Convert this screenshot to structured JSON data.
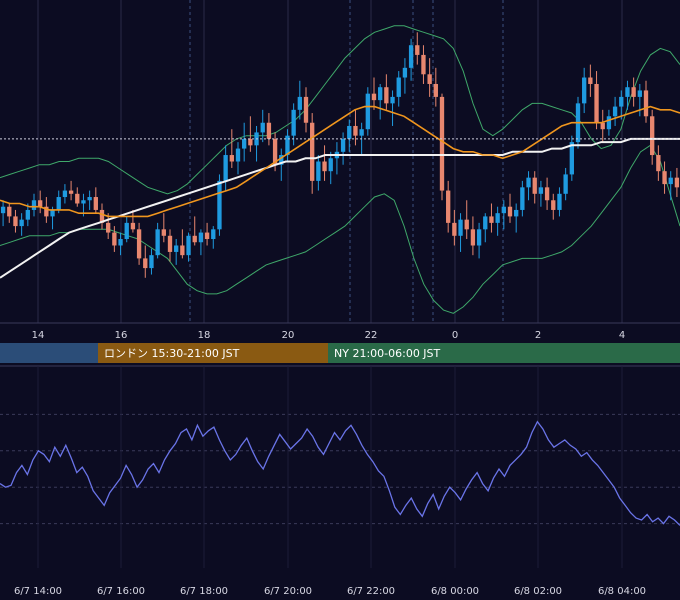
{
  "chart_data": [
    {
      "type": "candlestick",
      "title": "",
      "price_panel": {
        "ylim": [
          0,
          100
        ],
        "reference_line_y": 57,
        "x_ticks": [
          "14",
          "16",
          "18",
          "20",
          "22",
          "0",
          "2",
          "4"
        ],
        "candles_ohlc": [
          [
            34,
            38,
            30,
            36
          ],
          [
            36,
            37,
            31,
            33
          ],
          [
            33,
            35,
            28,
            30
          ],
          [
            30,
            34,
            27,
            32
          ],
          [
            32,
            37,
            30,
            35
          ],
          [
            35,
            40,
            33,
            38
          ],
          [
            38,
            41,
            34,
            36
          ],
          [
            36,
            39,
            31,
            33
          ],
          [
            33,
            36,
            29,
            35
          ],
          [
            35,
            41,
            34,
            39
          ],
          [
            39,
            43,
            37,
            41
          ],
          [
            41,
            44,
            38,
            40
          ],
          [
            40,
            42,
            36,
            37
          ],
          [
            37,
            40,
            33,
            38
          ],
          [
            38,
            41,
            35,
            39
          ],
          [
            39,
            42,
            34,
            35
          ],
          [
            35,
            37,
            29,
            31
          ],
          [
            31,
            34,
            26,
            28
          ],
          [
            28,
            30,
            22,
            24
          ],
          [
            24,
            28,
            21,
            26
          ],
          [
            26,
            33,
            25,
            31
          ],
          [
            31,
            35,
            28,
            29
          ],
          [
            29,
            31,
            18,
            20
          ],
          [
            20,
            24,
            14,
            17
          ],
          [
            17,
            23,
            15,
            21
          ],
          [
            21,
            31,
            20,
            29
          ],
          [
            29,
            34,
            25,
            27
          ],
          [
            27,
            29,
            19,
            22
          ],
          [
            22,
            26,
            18,
            24
          ],
          [
            24,
            29,
            20,
            21
          ],
          [
            21,
            28,
            19,
            27
          ],
          [
            27,
            33,
            24,
            25
          ],
          [
            25,
            29,
            21,
            28
          ],
          [
            28,
            31,
            24,
            26
          ],
          [
            26,
            30,
            23,
            29
          ],
          [
            29,
            46,
            27,
            44
          ],
          [
            44,
            55,
            41,
            52
          ],
          [
            52,
            60,
            48,
            50
          ],
          [
            50,
            56,
            46,
            54
          ],
          [
            54,
            62,
            50,
            57
          ],
          [
            57,
            64,
            53,
            55
          ],
          [
            55,
            61,
            50,
            59
          ],
          [
            59,
            66,
            56,
            62
          ],
          [
            62,
            65,
            55,
            57
          ],
          [
            57,
            59,
            47,
            49
          ],
          [
            49,
            54,
            44,
            52
          ],
          [
            52,
            60,
            50,
            58
          ],
          [
            58,
            68,
            55,
            66
          ],
          [
            66,
            75,
            63,
            70
          ],
          [
            70,
            73,
            59,
            62
          ],
          [
            62,
            65,
            40,
            44
          ],
          [
            44,
            52,
            41,
            50
          ],
          [
            50,
            55,
            44,
            47
          ],
          [
            47,
            53,
            43,
            51
          ],
          [
            51,
            56,
            46,
            53
          ],
          [
            53,
            59,
            49,
            57
          ],
          [
            57,
            63,
            53,
            61
          ],
          [
            61,
            66,
            55,
            58
          ],
          [
            58,
            62,
            52,
            60
          ],
          [
            60,
            73,
            58,
            71
          ],
          [
            71,
            76,
            66,
            69
          ],
          [
            69,
            74,
            63,
            73
          ],
          [
            73,
            77,
            66,
            68
          ],
          [
            68,
            72,
            61,
            70
          ],
          [
            70,
            78,
            67,
            76
          ],
          [
            76,
            82,
            71,
            79
          ],
          [
            79,
            88,
            75,
            86
          ],
          [
            86,
            90,
            80,
            83
          ],
          [
            83,
            86,
            74,
            77
          ],
          [
            77,
            82,
            70,
            74
          ],
          [
            74,
            79,
            67,
            70
          ],
          [
            70,
            71,
            38,
            41
          ],
          [
            41,
            44,
            28,
            31
          ],
          [
            31,
            35,
            24,
            27
          ],
          [
            27,
            34,
            22,
            32
          ],
          [
            32,
            38,
            26,
            29
          ],
          [
            29,
            33,
            21,
            24
          ],
          [
            24,
            31,
            20,
            29
          ],
          [
            29,
            34,
            25,
            33
          ],
          [
            33,
            37,
            28,
            31
          ],
          [
            31,
            36,
            27,
            34
          ],
          [
            34,
            38,
            29,
            36
          ],
          [
            36,
            40,
            31,
            33
          ],
          [
            33,
            37,
            28,
            35
          ],
          [
            35,
            44,
            33,
            42
          ],
          [
            42,
            47,
            38,
            45
          ],
          [
            45,
            47,
            37,
            40
          ],
          [
            40,
            44,
            36,
            42
          ],
          [
            42,
            45,
            35,
            38
          ],
          [
            38,
            40,
            32,
            35
          ],
          [
            35,
            42,
            33,
            40
          ],
          [
            40,
            48,
            38,
            46
          ],
          [
            46,
            58,
            44,
            56
          ],
          [
            56,
            70,
            54,
            68
          ],
          [
            68,
            79,
            65,
            76
          ],
          [
            76,
            80,
            70,
            74
          ],
          [
            74,
            78,
            60,
            62
          ],
          [
            62,
            66,
            56,
            60
          ],
          [
            60,
            66,
            58,
            64
          ],
          [
            64,
            70,
            61,
            67
          ],
          [
            67,
            72,
            63,
            70
          ],
          [
            70,
            75,
            66,
            73
          ],
          [
            73,
            76,
            67,
            70
          ],
          [
            70,
            74,
            64,
            72
          ],
          [
            72,
            75,
            62,
            64
          ],
          [
            64,
            66,
            49,
            52
          ],
          [
            52,
            55,
            44,
            47
          ],
          [
            47,
            50,
            40,
            43
          ],
          [
            43,
            47,
            38,
            45
          ],
          [
            45,
            48,
            39,
            42
          ]
        ],
        "bollinger_upper": [
          45,
          46,
          47,
          48,
          49,
          49,
          50,
          50,
          51,
          51,
          51,
          50,
          48,
          46,
          44,
          42,
          41,
          40,
          41,
          43,
          46,
          49,
          52,
          55,
          57,
          58,
          58,
          58,
          59,
          61,
          63,
          66,
          70,
          74,
          78,
          82,
          85,
          88,
          90,
          91,
          92,
          92,
          91,
          90,
          89,
          88,
          85,
          78,
          68,
          60,
          58,
          60,
          63,
          66,
          68,
          68,
          67,
          66,
          65,
          62,
          57,
          54,
          55,
          60,
          70,
          78,
          83,
          85,
          84,
          80
        ],
        "bollinger_lower": [
          24,
          25,
          26,
          27,
          27,
          27,
          28,
          28,
          29,
          29,
          29,
          29,
          28,
          27,
          26,
          24,
          22,
          20,
          16,
          12,
          10,
          9,
          9,
          10,
          12,
          14,
          16,
          18,
          19,
          20,
          21,
          22,
          24,
          26,
          28,
          30,
          33,
          36,
          39,
          40,
          38,
          30,
          20,
          12,
          7,
          4,
          3,
          5,
          8,
          12,
          15,
          18,
          19,
          20,
          20,
          20,
          21,
          22,
          24,
          27,
          30,
          34,
          38,
          42,
          48,
          53,
          55,
          50,
          40,
          30
        ],
        "ma_orange": [
          38,
          37,
          37,
          36,
          36,
          35,
          35,
          35,
          34,
          34,
          34,
          33,
          33,
          33,
          33,
          33,
          34,
          35,
          36,
          37,
          38,
          39,
          40,
          41,
          42,
          44,
          46,
          48,
          50,
          52,
          54,
          56,
          58,
          60,
          62,
          64,
          66,
          67,
          67,
          66,
          65,
          64,
          62,
          60,
          58,
          56,
          54,
          53,
          53,
          52,
          52,
          51,
          52,
          53,
          55,
          57,
          59,
          61,
          62,
          62,
          62,
          62,
          63,
          64,
          65,
          66,
          67,
          66,
          66,
          65
        ],
        "ma_white": [
          14,
          16,
          18,
          20,
          22,
          24,
          26,
          28,
          29,
          30,
          31,
          32,
          33,
          34,
          35,
          36,
          37,
          38,
          39,
          40,
          41,
          42,
          43,
          44,
          45,
          46,
          47,
          48,
          49,
          50,
          50,
          51,
          51,
          52,
          52,
          52,
          52,
          52,
          52,
          52,
          52,
          52,
          52,
          52,
          52,
          52,
          52,
          52,
          52,
          52,
          52,
          52,
          53,
          53,
          53,
          53,
          54,
          54,
          55,
          55,
          55,
          56,
          56,
          56,
          57,
          57,
          57,
          57,
          57,
          57
        ]
      },
      "sessions": [
        {
          "label": "",
          "color": "#2b4d78"
        },
        {
          "label": "ロンドン 15:30-21:00 JST",
          "color": "#8a5a12"
        },
        {
          "label": "NY 21:00-06:00 JST",
          "color": "#2a6a48"
        }
      ],
      "oscillator_panel": {
        "ylim": [
          0,
          100
        ],
        "x_ticks": [
          "6/7 14:00",
          "6/7 16:00",
          "6/7 18:00",
          "6/7 20:00",
          "6/7 22:00",
          "6/8 00:00",
          "6/8 02:00",
          "6/8 04:00"
        ],
        "values": [
          42,
          40,
          41,
          48,
          52,
          47,
          55,
          60,
          58,
          54,
          62,
          57,
          63,
          56,
          48,
          51,
          46,
          38,
          34,
          30,
          37,
          41,
          45,
          52,
          47,
          40,
          44,
          50,
          53,
          48,
          55,
          60,
          64,
          70,
          72,
          66,
          74,
          68,
          71,
          73,
          66,
          60,
          55,
          58,
          63,
          67,
          60,
          54,
          50,
          57,
          63,
          69,
          65,
          61,
          64,
          67,
          72,
          68,
          62,
          58,
          64,
          70,
          66,
          71,
          74,
          69,
          63,
          58,
          54,
          49,
          46,
          38,
          29,
          25,
          30,
          34,
          28,
          24,
          31,
          36,
          28,
          35,
          40,
          37,
          33,
          39,
          44,
          48,
          42,
          38,
          45,
          50,
          46,
          52,
          55,
          58,
          62,
          70,
          76,
          72,
          66,
          62,
          64,
          66,
          63,
          61,
          57,
          59,
          55,
          52,
          48,
          44,
          40,
          34,
          30,
          26,
          23,
          22,
          25,
          21,
          23,
          20,
          24,
          22,
          19
        ]
      }
    }
  ]
}
